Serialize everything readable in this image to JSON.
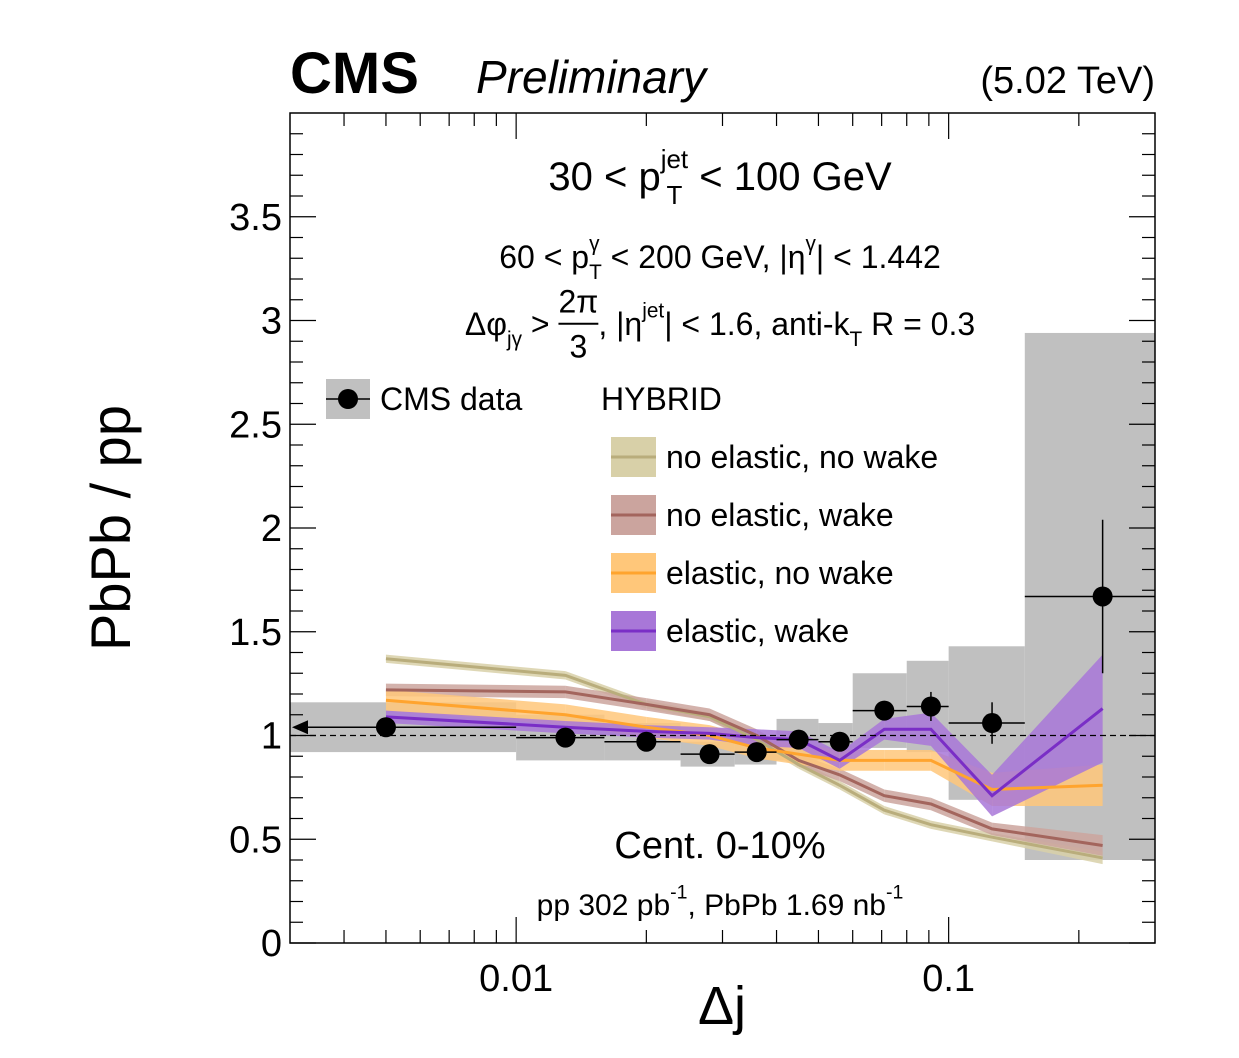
{
  "chart_data": {
    "type": "line",
    "header": {
      "experiment": "CMS",
      "status": "Preliminary",
      "energy": "(5.02 TeV)"
    },
    "xlabel": "Δj",
    "ylabel": "PbPb / pp",
    "xscale": "log",
    "xlim": [
      0.003,
      0.3
    ],
    "xticks": [
      0.01,
      0.1
    ],
    "xminorticks": [
      0.004,
      0.005,
      0.006,
      0.007,
      0.008,
      0.009,
      0.02,
      0.03,
      0.04,
      0.05,
      0.06,
      0.07,
      0.08,
      0.09,
      0.2
    ],
    "ylim": [
      0,
      4
    ],
    "yticks": [
      0,
      0.5,
      1,
      1.5,
      2,
      2.5,
      3,
      3.5
    ],
    "yminorticks": [
      0.1,
      0.2,
      0.3,
      0.4,
      0.6,
      0.7,
      0.8,
      0.9,
      1.1,
      1.2,
      1.3,
      1.4,
      1.6,
      1.7,
      1.8,
      1.9,
      2.1,
      2.2,
      2.3,
      2.4,
      2.6,
      2.7,
      2.8,
      2.9,
      3.1,
      3.2,
      3.3,
      3.4,
      3.6,
      3.7,
      3.8,
      3.9
    ],
    "reference_line": 1,
    "annotations": [
      [
        {
          "text": "30 < p"
        },
        {
          "text": "jet",
          "role": "sup"
        },
        {
          "text": "T",
          "role": "sub"
        },
        {
          "text": " < 100 GeV"
        }
      ],
      [
        {
          "text": "60 < p"
        },
        {
          "text": "γ",
          "role": "sup"
        },
        {
          "text": "T",
          "role": "sub"
        },
        {
          "text": " < 200 GeV, |η"
        },
        {
          "text": "γ",
          "role": "sup"
        },
        {
          "text": "| < 1.442"
        }
      ],
      [
        {
          "text": "Δφ"
        },
        {
          "text": "jγ",
          "role": "sub"
        },
        {
          "text": " > "
        },
        {
          "text": "2π",
          "role": "num"
        },
        {
          "text": "3",
          "role": "den"
        },
        {
          "text": ", |η"
        },
        {
          "text": "jet",
          "role": "sup"
        },
        {
          "text": "| < 1.6, anti-k"
        },
        {
          "text": "T",
          "role": "sub"
        },
        {
          "text": " R = 0.3"
        }
      ],
      [
        {
          "text": "Cent. 0-10%"
        }
      ],
      [
        {
          "text": "pp 302 pb"
        },
        {
          "text": "-1",
          "role": "sup"
        },
        {
          "text": ", PbPb 1.69 nb"
        },
        {
          "text": "-1",
          "role": "sup"
        }
      ]
    ],
    "legend_title": "HYBRID",
    "x": [
      0.005,
      0.013,
      0.02,
      0.028,
      0.036,
      0.045,
      0.056,
      0.071,
      0.091,
      0.126,
      0.227
    ],
    "data": {
      "name": "CMS data",
      "color": "#000000",
      "sys_color": "#c0c0c0",
      "bin_edges": [
        0.003,
        0.01,
        0.016,
        0.024,
        0.032,
        0.04,
        0.05,
        0.06,
        0.08,
        0.1,
        0.15,
        0.3
      ],
      "values": [
        1.04,
        0.99,
        0.97,
        0.91,
        0.92,
        0.98,
        0.97,
        1.12,
        1.14,
        1.06,
        1.67
      ],
      "stat_errors": [
        0.02,
        0.02,
        0.02,
        0.02,
        0.02,
        0.03,
        0.03,
        0.04,
        0.07,
        0.1,
        0.37
      ],
      "sys_errors": [
        0.12,
        0.11,
        0.09,
        0.06,
        0.06,
        0.1,
        0.09,
        0.18,
        0.22,
        0.37,
        1.27
      ]
    },
    "series": [
      {
        "name": "no elastic, no wake",
        "color": "#b9ad7c",
        "band_color": "#d8d0a8",
        "values": [
          1.37,
          1.29,
          1.15,
          1.09,
          0.98,
          0.86,
          0.76,
          0.64,
          0.57,
          0.51,
          0.41
        ],
        "errors": [
          0.02,
          0.02,
          0.02,
          0.02,
          0.02,
          0.02,
          0.02,
          0.02,
          0.02,
          0.02,
          0.03
        ]
      },
      {
        "name": "no elastic, wake",
        "color": "#a3655d",
        "band_color": "#cba49e",
        "values": [
          1.22,
          1.21,
          1.15,
          1.1,
          1.0,
          0.88,
          0.81,
          0.71,
          0.67,
          0.55,
          0.47
        ],
        "errors": [
          0.03,
          0.03,
          0.03,
          0.03,
          0.03,
          0.03,
          0.03,
          0.03,
          0.03,
          0.03,
          0.05
        ]
      },
      {
        "name": "elastic, no wake",
        "color": "#ffa42e",
        "band_color": "#ffc77a",
        "values": [
          1.17,
          1.1,
          1.04,
          1.0,
          0.94,
          0.91,
          0.88,
          0.88,
          0.88,
          0.74,
          0.76
        ],
        "errors": [
          0.05,
          0.05,
          0.05,
          0.05,
          0.05,
          0.05,
          0.05,
          0.05,
          0.05,
          0.08,
          0.1
        ]
      },
      {
        "name": "elastic, wake",
        "color": "#7a2ec6",
        "band_color": "#a877d8",
        "values": [
          1.09,
          1.04,
          1.02,
          1.01,
          0.99,
          0.98,
          0.88,
          1.03,
          1.03,
          0.71,
          1.13
        ],
        "errors": [
          0.03,
          0.03,
          0.03,
          0.03,
          0.04,
          0.04,
          0.04,
          0.05,
          0.08,
          0.1,
          0.26
        ]
      }
    ]
  }
}
